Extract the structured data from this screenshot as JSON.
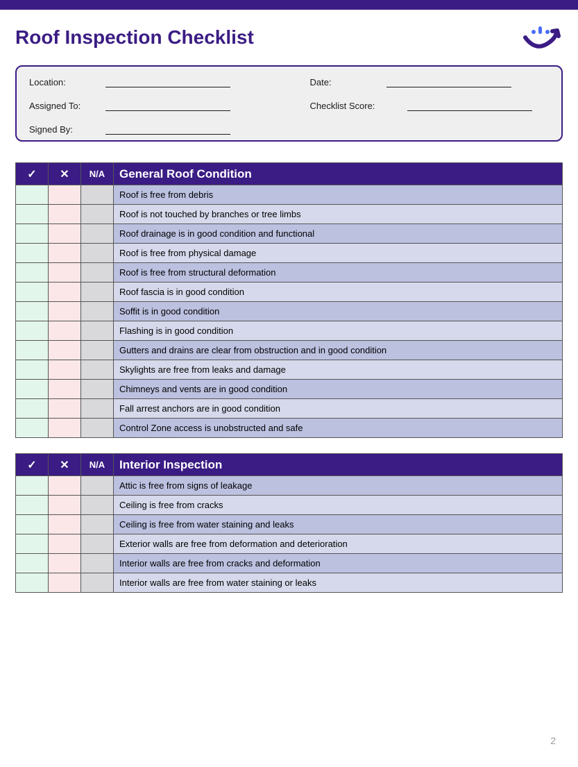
{
  "colors": {
    "brand": "#3b1c84",
    "infobox_bg": "#f0eff0",
    "check_bg": "#e3f6ec",
    "x_bg": "#fbe7e8",
    "na_bg": "#d9d9dc",
    "item_odd": "#bcc1e0",
    "item_even": "#d6d9eb",
    "text": "#1a1a1a",
    "page_num": "#9a9a9a"
  },
  "title": "Roof Inspection Checklist",
  "info": {
    "location_label": "Location:",
    "date_label": "Date:",
    "assigned_label": "Assigned To:",
    "score_label": "Checklist Score:",
    "signed_label": "Signed By:"
  },
  "columns": {
    "check": "✓",
    "x": "✕",
    "na": "N/A"
  },
  "section1": {
    "title": "General Roof Condition",
    "items": [
      "Roof is free from debris",
      "Roof is not touched by branches or tree limbs",
      "Roof drainage is in good condition and functional",
      "Roof is free from physical damage",
      "Roof is free from structural deformation",
      "Roof fascia is in good condition",
      "Soffit is in good condition",
      "Flashing is in good condition",
      "Gutters and drains are clear from obstruction and in good condition",
      "Skylights are free from leaks and damage",
      "Chimneys and vents are in good condition",
      "Fall arrest anchors are in good condition",
      "Control Zone access is unobstructed and safe"
    ]
  },
  "section2": {
    "title": "Interior Inspection",
    "items": [
      "Attic is free from signs of leakage",
      "Ceiling is free from cracks",
      "Ceiling is free from water staining and leaks",
      "Exterior walls are free from deformation and deterioration",
      "Interior walls are free from cracks and deformation",
      "Interior walls are free from water staining or leaks"
    ]
  },
  "page_number": "2"
}
